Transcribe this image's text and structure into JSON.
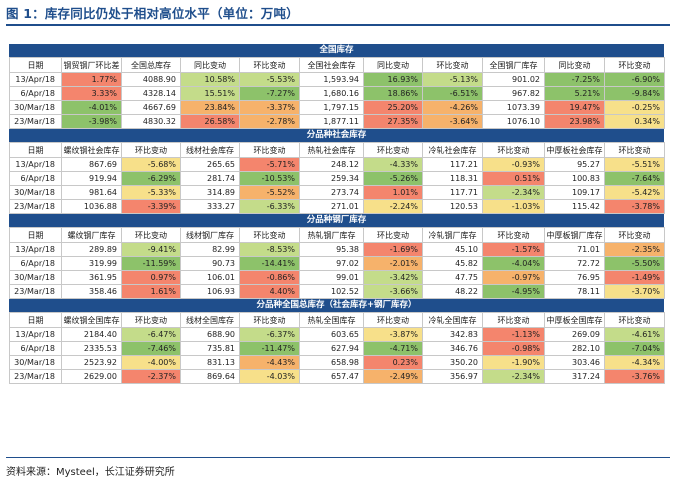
{
  "figure": {
    "title": "图 1：库存同比仍处于相对高位水平（单位：万吨）",
    "source": "资料来源：Mysteel，长江证券研究所"
  },
  "colors": {
    "red": "#f4856d",
    "orange": "#f6b26b",
    "yellow": "#f7e08a",
    "lightgreen": "#c4dc8a",
    "green": "#8dc26a"
  },
  "sections": [
    {
      "title": "全国库存",
      "headers": [
        "日期",
        "钢贸钢厂环比差",
        "全国总库存",
        "同比变动",
        "环比变动",
        "全国社会库存",
        "同比变动",
        "环比变动",
        "全国钢厂库存",
        "同比变动",
        "环比变动"
      ],
      "rows": [
        [
          "13/Apr/18",
          "1.77%",
          "4088.90",
          "10.58%",
          "-5.53%",
          "1,593.94",
          "16.93%",
          "-5.13%",
          "901.02",
          "-7.25%",
          "-6.90%"
        ],
        [
          "6/Apr/18",
          "3.33%",
          "4328.14",
          "15.51%",
          "-7.27%",
          "1,680.16",
          "18.86%",
          "-6.51%",
          "967.82",
          "5.21%",
          "-9.84%"
        ],
        [
          "30/Mar/18",
          "-4.01%",
          "4667.69",
          "23.84%",
          "-3.37%",
          "1,797.15",
          "25.20%",
          "-4.26%",
          "1073.39",
          "19.47%",
          "-0.25%"
        ],
        [
          "23/Mar/18",
          "-3.98%",
          "4830.32",
          "26.58%",
          "-2.78%",
          "1,877.11",
          "27.35%",
          "-3.64%",
          "1076.10",
          "23.98%",
          "0.34%"
        ]
      ],
      "colors": [
        [
          "",
          "red",
          "",
          "lightgreen",
          "lightgreen",
          "",
          "green",
          "lightgreen",
          "",
          "green",
          "green"
        ],
        [
          "",
          "red",
          "",
          "lightgreen",
          "green",
          "",
          "green",
          "green",
          "",
          "green",
          "green"
        ],
        [
          "",
          "green",
          "",
          "orange",
          "orange",
          "",
          "red",
          "orange",
          "",
          "red",
          "yellow"
        ],
        [
          "",
          "green",
          "",
          "red",
          "orange",
          "",
          "red",
          "orange",
          "",
          "red",
          "yellow"
        ]
      ]
    },
    {
      "title": "分品种社会库存",
      "headers": [
        "日期",
        "螺纹钢社会库存",
        "环比变动",
        "线材社会库存",
        "环比变动",
        "热轧社会库存",
        "环比变动",
        "冷轧社会库存",
        "环比变动",
        "中厚板社会库存",
        "环比变动"
      ],
      "rows": [
        [
          "13/Apr/18",
          "867.69",
          "-5.68%",
          "265.65",
          "-5.71%",
          "248.12",
          "-4.33%",
          "117.21",
          "-0.93%",
          "95.27",
          "-5.51%"
        ],
        [
          "6/Apr/18",
          "919.94",
          "-6.29%",
          "281.74",
          "-10.53%",
          "259.34",
          "-5.26%",
          "118.31",
          "0.51%",
          "100.83",
          "-7.64%"
        ],
        [
          "30/Mar/18",
          "981.64",
          "-5.33%",
          "314.89",
          "-5.52%",
          "273.74",
          "1.01%",
          "117.71",
          "-2.34%",
          "109.17",
          "-5.42%"
        ],
        [
          "23/Mar/18",
          "1036.88",
          "-3.39%",
          "333.27",
          "-6.33%",
          "271.01",
          "-2.24%",
          "120.53",
          "-1.03%",
          "115.42",
          "-3.78%"
        ]
      ],
      "colors": [
        [
          "",
          "",
          "yellow",
          "",
          "red",
          "",
          "lightgreen",
          "",
          "yellow",
          "",
          "yellow"
        ],
        [
          "",
          "",
          "green",
          "",
          "green",
          "",
          "green",
          "",
          "red",
          "",
          "green"
        ],
        [
          "",
          "",
          "yellow",
          "",
          "orange",
          "",
          "red",
          "",
          "lightgreen",
          "",
          "yellow"
        ],
        [
          "",
          "",
          "red",
          "",
          "lightgreen",
          "",
          "yellow",
          "",
          "yellow",
          "",
          "red"
        ]
      ]
    },
    {
      "title": "分品种钢厂库存",
      "headers": [
        "日期",
        "螺纹钢厂库存",
        "环比变动",
        "线材钢厂库存",
        "环比变动",
        "热轧钢厂库存",
        "环比变动",
        "冷轧钢厂库存",
        "环比变动",
        "中厚板钢厂库存",
        "环比变动"
      ],
      "rows": [
        [
          "13/Apr/18",
          "289.89",
          "-9.41%",
          "82.99",
          "-8.53%",
          "95.38",
          "-1.69%",
          "45.10",
          "-1.57%",
          "71.01",
          "-2.35%"
        ],
        [
          "6/Apr/18",
          "319.99",
          "-11.59%",
          "90.73",
          "-14.41%",
          "97.02",
          "-2.01%",
          "45.82",
          "-4.04%",
          "72.72",
          "-5.50%"
        ],
        [
          "30/Mar/18",
          "361.95",
          "0.97%",
          "106.01",
          "-0.86%",
          "99.01",
          "-3.42%",
          "47.75",
          "-0.97%",
          "76.95",
          "-1.49%"
        ],
        [
          "23/Mar/18",
          "358.46",
          "1.61%",
          "106.93",
          "4.40%",
          "102.52",
          "-3.66%",
          "48.22",
          "-4.95%",
          "78.11",
          "-3.70%"
        ]
      ],
      "colors": [
        [
          "",
          "",
          "lightgreen",
          "",
          "lightgreen",
          "",
          "red",
          "",
          "red",
          "",
          "orange"
        ],
        [
          "",
          "",
          "green",
          "",
          "green",
          "",
          "orange",
          "",
          "green",
          "",
          "green"
        ],
        [
          "",
          "",
          "red",
          "",
          "red",
          "",
          "lightgreen",
          "",
          "orange",
          "",
          "red"
        ],
        [
          "",
          "",
          "red",
          "",
          "red",
          "",
          "lightgreen",
          "",
          "green",
          "",
          "yellow"
        ]
      ]
    },
    {
      "title": "分品种全国总库存（社会库存+钢厂库存）",
      "headers": [
        "日期",
        "螺纹钢全国库存",
        "环比变动",
        "线材全国库存",
        "环比变动",
        "热轧全国库存",
        "环比变动",
        "冷轧全国库存",
        "环比变动",
        "中厚板全国库存",
        "环比变动"
      ],
      "rows": [
        [
          "13/Apr/18",
          "2184.40",
          "-6.47%",
          "688.90",
          "-6.37%",
          "603.65",
          "-3.87%",
          "342.83",
          "-1.13%",
          "269.09",
          "-4.61%"
        ],
        [
          "6/Apr/18",
          "2335.53",
          "-7.46%",
          "735.81",
          "-11.47%",
          "627.94",
          "-4.71%",
          "346.76",
          "-0.98%",
          "282.10",
          "-7.04%"
        ],
        [
          "30/Mar/18",
          "2523.92",
          "-4.00%",
          "831.13",
          "-4.43%",
          "658.98",
          "0.23%",
          "350.20",
          "-1.90%",
          "303.46",
          "-4.34%"
        ],
        [
          "23/Mar/18",
          "2629.00",
          "-2.37%",
          "869.64",
          "-4.03%",
          "657.47",
          "-2.49%",
          "356.97",
          "-2.34%",
          "317.24",
          "-3.76%"
        ]
      ],
      "colors": [
        [
          "",
          "",
          "lightgreen",
          "",
          "lightgreen",
          "",
          "yellow",
          "",
          "red",
          "",
          "lightgreen"
        ],
        [
          "",
          "",
          "green",
          "",
          "green",
          "",
          "green",
          "",
          "red",
          "",
          "green"
        ],
        [
          "",
          "",
          "yellow",
          "",
          "orange",
          "",
          "red",
          "",
          "yellow",
          "",
          "yellow"
        ],
        [
          "",
          "",
          "red",
          "",
          "yellow",
          "",
          "orange",
          "",
          "lightgreen",
          "",
          "red"
        ]
      ]
    }
  ]
}
